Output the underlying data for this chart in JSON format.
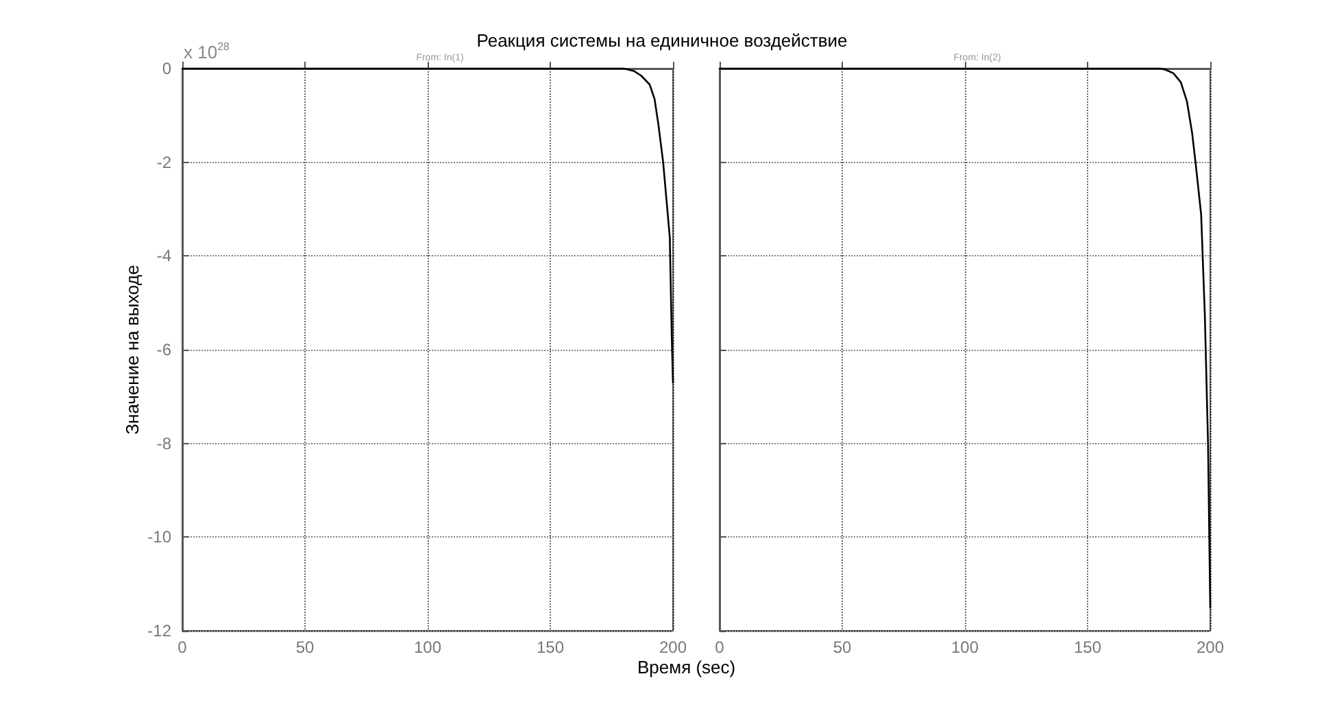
{
  "chart_data": [
    {
      "type": "line",
      "title": "Реакция системы на единичное воздействие",
      "subtitle": "From: In(1)",
      "xlabel": "Время (sec)",
      "ylabel": "Значение на выходе",
      "annotations": [
        "x 10$^{28}$"
      ],
      "series": [
        {
          "color": "#000000",
          "x": [
            0,
            100,
            180,
            184,
            187,
            190.5,
            192.5,
            194,
            196,
            198.7,
            199.5,
            200
          ],
          "values": [
            0,
            0,
            0,
            -0.05,
            -0.15,
            -0.34,
            -0.65,
            -1.17,
            -2,
            -3.6,
            -5.7,
            -6.7
          ]
        }
      ],
      "xlim": [
        0,
        200
      ],
      "xticks": [
        0,
        50,
        100,
        150,
        200
      ],
      "ylim": [
        -12,
        0
      ],
      "yticks": [
        -12,
        -10,
        -8,
        -6,
        -4,
        -2,
        0
      ],
      "grid": true,
      "marker": "none",
      "line_style": "solid"
    },
    {
      "type": "line",
      "subtitle": "From: In(2)",
      "series": [
        {
          "color": "#000000",
          "x": [
            0,
            100,
            180,
            182,
            185,
            188,
            190.5,
            192.6,
            194,
            196.3,
            197.8,
            199.1,
            200
          ],
          "values": [
            0,
            0,
            0,
            -0.03,
            -0.1,
            -0.29,
            -0.7,
            -1.37,
            -2,
            -3.12,
            -5.26,
            -8,
            -11.5
          ]
        }
      ],
      "xlim": [
        0,
        200
      ],
      "xticks": [
        0,
        50,
        100,
        150,
        200
      ],
      "ylim": [
        -12,
        0
      ],
      "yticks": [
        -12,
        -10,
        -8,
        -6,
        -4,
        -2,
        0
      ],
      "grid": true,
      "marker": "none",
      "line_style": "solid",
      "tick_labels": "x"
    }
  ]
}
